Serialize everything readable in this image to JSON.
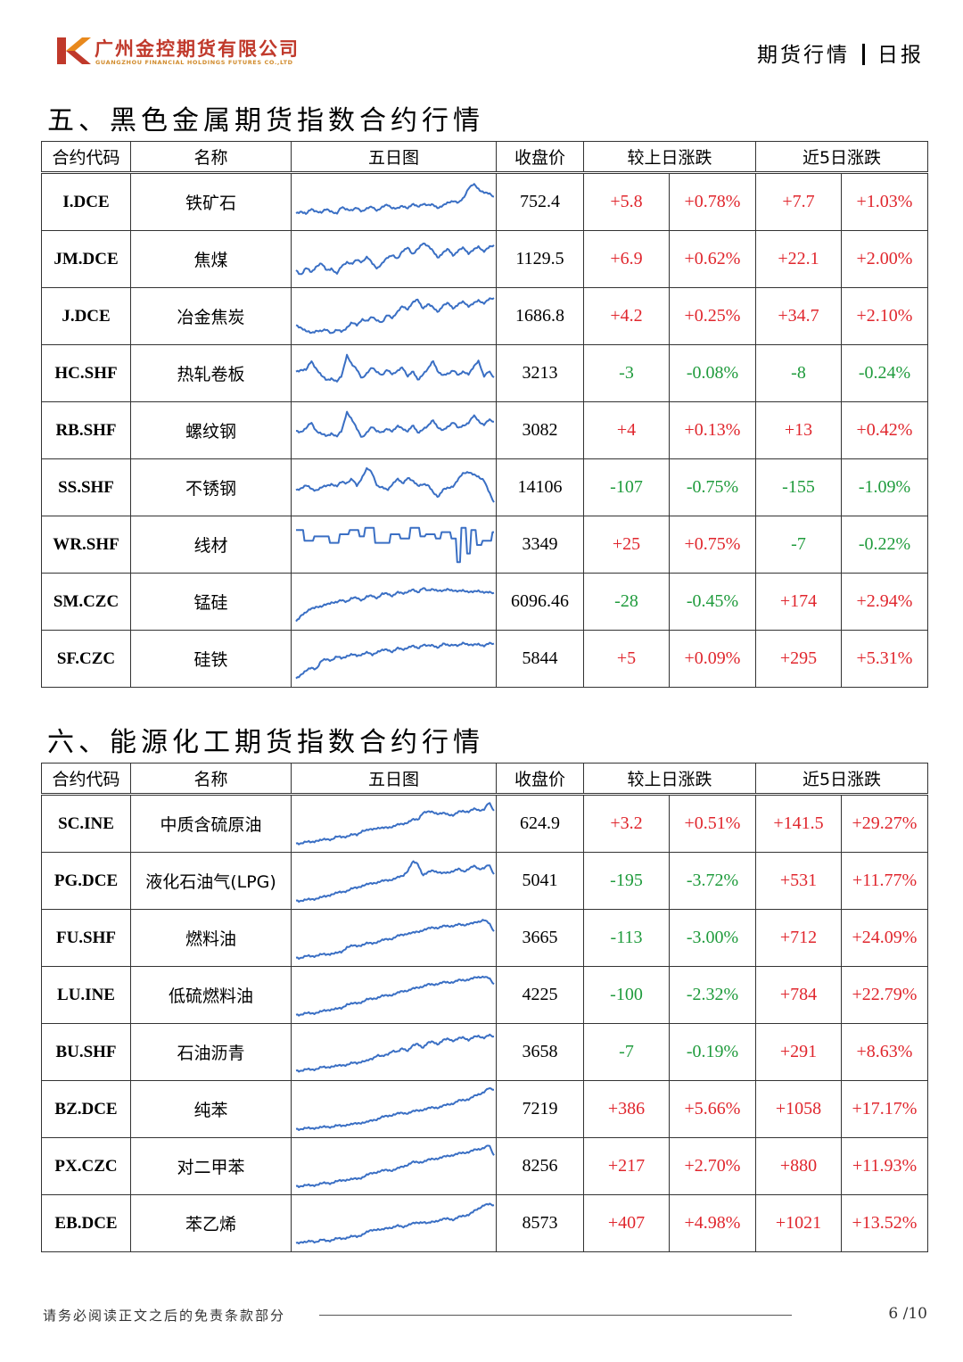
{
  "header": {
    "company_cn": "广州金控期货有限公司",
    "company_en": "GUANGZHOU FINANCIAL HOLDINGS FUTURES CO.,LTD",
    "report_category": "期货行情",
    "report_type": "日报"
  },
  "colors": {
    "up": "#e0262d",
    "down": "#1f9b3c",
    "sparkline": "#3a6fc4",
    "logo_red": "#c0392b",
    "logo_orange": "#e8891d"
  },
  "columns": {
    "code": "合约代码",
    "name": "名称",
    "chart": "五日图",
    "close": "收盘价",
    "day_change": "较上日涨跌",
    "five_day_change": "近5日涨跌"
  },
  "sections": [
    {
      "title": "五、黑色金属期货指数合约行情",
      "rows": [
        {
          "code": "I.DCE",
          "name": "铁矿石",
          "close": "752.4",
          "chg": "+5.8",
          "chg_pct": "+0.78%",
          "chg5": "+7.7",
          "chg5_pct": "+1.03%",
          "dir": "up",
          "dir5": "up",
          "trend": [
            0.25,
            0.3,
            0.22,
            0.35,
            0.3,
            0.25,
            0.35,
            0.3,
            0.22,
            0.4,
            0.35,
            0.3,
            0.38,
            0.3,
            0.35,
            0.4,
            0.32,
            0.38,
            0.45,
            0.38,
            0.35,
            0.42,
            0.38,
            0.45,
            0.4,
            0.48,
            0.42,
            0.45,
            0.38,
            0.42,
            0.5,
            0.55,
            0.48,
            0.6,
            0.85,
            0.92,
            0.8,
            0.75,
            0.7,
            0.62
          ]
        },
        {
          "code": "JM.DCE",
          "name": "焦煤",
          "close": "1129.5",
          "chg": "+6.9",
          "chg_pct": "+0.62%",
          "chg5": "+22.1",
          "chg5_pct": "+2.00%",
          "dir": "up",
          "dir5": "up",
          "trend": [
            0.25,
            0.15,
            0.3,
            0.2,
            0.35,
            0.4,
            0.25,
            0.3,
            0.15,
            0.35,
            0.45,
            0.38,
            0.5,
            0.45,
            0.55,
            0.42,
            0.3,
            0.4,
            0.55,
            0.62,
            0.5,
            0.7,
            0.8,
            0.6,
            0.75,
            0.9,
            0.8,
            0.7,
            0.55,
            0.65,
            0.75,
            0.6,
            0.7,
            0.78,
            0.65,
            0.72,
            0.8,
            0.7,
            0.78,
            0.82
          ]
        },
        {
          "code": "J.DCE",
          "name": "冶金焦炭",
          "close": "1686.8",
          "chg": "+4.2",
          "chg_pct": "+0.25%",
          "chg5": "+34.7",
          "chg5_pct": "+2.10%",
          "dir": "up",
          "dir5": "up",
          "trend": [
            0.3,
            0.25,
            0.15,
            0.12,
            0.18,
            0.15,
            0.2,
            0.12,
            0.18,
            0.15,
            0.25,
            0.35,
            0.3,
            0.45,
            0.38,
            0.5,
            0.42,
            0.35,
            0.55,
            0.48,
            0.6,
            0.75,
            0.68,
            0.82,
            0.9,
            0.7,
            0.78,
            0.72,
            0.62,
            0.75,
            0.82,
            0.7,
            0.78,
            0.85,
            0.75,
            0.8,
            0.88,
            0.82,
            0.9,
            0.92
          ]
        },
        {
          "code": "HC.SHF",
          "name": "热轧卷板",
          "close": "3213",
          "chg": "-3",
          "chg_pct": "-0.08%",
          "chg5": "-8",
          "chg5_pct": "-0.24%",
          "dir": "down",
          "dir5": "down",
          "trend": [
            0.55,
            0.6,
            0.58,
            0.8,
            0.62,
            0.45,
            0.35,
            0.4,
            0.3,
            0.45,
            0.95,
            0.7,
            0.6,
            0.4,
            0.5,
            0.65,
            0.55,
            0.45,
            0.6,
            0.5,
            0.55,
            0.65,
            0.45,
            0.55,
            0.35,
            0.5,
            0.6,
            0.8,
            0.55,
            0.45,
            0.5,
            0.6,
            0.45,
            0.55,
            0.5,
            0.65,
            0.8,
            0.45,
            0.55,
            0.4
          ]
        },
        {
          "code": "RB.SHF",
          "name": "螺纹钢",
          "close": "3082",
          "chg": "+4",
          "chg_pct": "+0.13%",
          "chg5": "+13",
          "chg5_pct": "+0.42%",
          "dir": "up",
          "dir5": "up",
          "trend": [
            0.5,
            0.48,
            0.55,
            0.7,
            0.5,
            0.42,
            0.38,
            0.45,
            0.35,
            0.5,
            0.95,
            0.75,
            0.55,
            0.35,
            0.45,
            0.6,
            0.5,
            0.45,
            0.55,
            0.5,
            0.6,
            0.55,
            0.5,
            0.62,
            0.45,
            0.55,
            0.6,
            0.75,
            0.58,
            0.5,
            0.6,
            0.72,
            0.55,
            0.62,
            0.7,
            0.85,
            0.72,
            0.65,
            0.75,
            0.7
          ]
        },
        {
          "code": "SS.SHF",
          "name": "不锈钢",
          "close": "14106",
          "chg": "-107",
          "chg_pct": "-0.75%",
          "chg5": "-155",
          "chg5_pct": "-1.09%",
          "dir": "down",
          "dir5": "down",
          "trend": [
            0.45,
            0.5,
            0.55,
            0.48,
            0.45,
            0.5,
            0.55,
            0.6,
            0.52,
            0.65,
            0.62,
            0.7,
            0.55,
            0.75,
            0.95,
            0.85,
            0.55,
            0.5,
            0.45,
            0.6,
            0.7,
            0.6,
            0.75,
            0.65,
            0.55,
            0.6,
            0.55,
            0.4,
            0.3,
            0.45,
            0.5,
            0.55,
            0.7,
            0.85,
            0.88,
            0.8,
            0.75,
            0.7,
            0.4,
            0.15
          ]
        },
        {
          "code": "WR.SHF",
          "name": "线材",
          "close": "3349",
          "chg": "+25",
          "chg_pct": "+0.75%",
          "chg5": "-7",
          "chg5_pct": "-0.22%",
          "dir": "up",
          "dir5": "down",
          "trend": [
            0.85,
            0.85,
            0.6,
            0.6,
            0.7,
            0.7,
            0.7,
            0.55,
            0.55,
            0.75,
            0.75,
            0.85,
            0.85,
            0.7,
            0.9,
            0.9,
            0.55,
            0.55,
            0.55,
            0.75,
            0.75,
            0.65,
            0.65,
            0.9,
            0.9,
            0.7,
            0.75,
            0.75,
            0.65,
            0.8,
            0.8,
            0.65,
            0.1,
            0.9,
            0.3,
            0.85,
            0.5,
            0.6,
            0.6,
            0.8
          ]
        },
        {
          "code": "SM.CZC",
          "name": "锰硅",
          "close": "6096.46",
          "chg": "-28",
          "chg_pct": "-0.45%",
          "chg5": "+174",
          "chg5_pct": "+2.94%",
          "dir": "down",
          "dir5": "up",
          "trend": [
            0.05,
            0.2,
            0.25,
            0.35,
            0.4,
            0.38,
            0.45,
            0.5,
            0.48,
            0.55,
            0.52,
            0.58,
            0.6,
            0.55,
            0.62,
            0.65,
            0.6,
            0.68,
            0.7,
            0.65,
            0.72,
            0.7,
            0.75,
            0.78,
            0.72,
            0.85,
            0.75,
            0.8,
            0.78,
            0.75,
            0.8,
            0.78,
            0.74,
            0.77,
            0.75,
            0.73,
            0.76,
            0.74,
            0.72,
            0.7
          ]
        },
        {
          "code": "SF.CZC",
          "name": "硅铁",
          "close": "5844",
          "chg": "+5",
          "chg_pct": "+0.09%",
          "chg5": "+295",
          "chg5_pct": "+5.31%",
          "dir": "up",
          "dir5": "up",
          "trend": [
            0.05,
            0.15,
            0.22,
            0.3,
            0.28,
            0.45,
            0.5,
            0.48,
            0.55,
            0.52,
            0.58,
            0.6,
            0.58,
            0.62,
            0.65,
            0.6,
            0.68,
            0.7,
            0.72,
            0.68,
            0.75,
            0.72,
            0.78,
            0.8,
            0.75,
            0.85,
            0.8,
            0.82,
            0.78,
            0.85,
            0.82,
            0.85,
            0.8,
            0.88,
            0.85,
            0.82,
            0.85,
            0.82,
            0.86,
            0.85
          ]
        }
      ]
    },
    {
      "title": "六、能源化工期货指数合约行情",
      "rows": [
        {
          "code": "SC.INE",
          "name": "中质含硫原油",
          "close": "624.9",
          "chg": "+3.2",
          "chg_pct": "+0.51%",
          "chg5": "+141.5",
          "chg5_pct": "+29.27%",
          "dir": "up",
          "dir5": "up",
          "trend": [
            0.05,
            0.06,
            0.08,
            0.08,
            0.12,
            0.12,
            0.15,
            0.15,
            0.2,
            0.2,
            0.22,
            0.25,
            0.25,
            0.35,
            0.35,
            0.38,
            0.42,
            0.4,
            0.42,
            0.45,
            0.48,
            0.5,
            0.55,
            0.6,
            0.6,
            0.78,
            0.78,
            0.78,
            0.75,
            0.75,
            0.72,
            0.72,
            0.78,
            0.8,
            0.8,
            0.85,
            0.82,
            0.85,
            1.0,
            0.8
          ]
        },
        {
          "code": "PG.DCE",
          "name": "液化石油气(LPG)",
          "close": "5041",
          "chg": "-195",
          "chg_pct": "-3.72%",
          "chg5": "+531",
          "chg5_pct": "+11.77%",
          "dir": "down",
          "dir5": "up",
          "trend": [
            0.05,
            0.05,
            0.06,
            0.08,
            0.1,
            0.12,
            0.15,
            0.2,
            0.22,
            0.25,
            0.28,
            0.32,
            0.35,
            0.4,
            0.42,
            0.45,
            0.48,
            0.5,
            0.52,
            0.55,
            0.58,
            0.62,
            0.75,
            0.95,
            0.9,
            0.65,
            0.7,
            0.75,
            0.72,
            0.68,
            0.7,
            0.75,
            0.78,
            0.72,
            0.8,
            0.85,
            0.78,
            0.82,
            0.88,
            0.65
          ]
        },
        {
          "code": "FU.SHF",
          "name": "燃料油",
          "close": "3665",
          "chg": "-113",
          "chg_pct": "-3.00%",
          "chg5": "+712",
          "chg5_pct": "+24.09%",
          "dir": "down",
          "dir5": "up",
          "trend": [
            0.05,
            0.05,
            0.08,
            0.08,
            0.1,
            0.12,
            0.12,
            0.15,
            0.15,
            0.18,
            0.3,
            0.32,
            0.32,
            0.35,
            0.38,
            0.38,
            0.42,
            0.45,
            0.48,
            0.5,
            0.55,
            0.58,
            0.62,
            0.62,
            0.65,
            0.7,
            0.72,
            0.75,
            0.75,
            0.78,
            0.78,
            0.8,
            0.82,
            0.8,
            0.85,
            0.85,
            0.88,
            0.95,
            0.85,
            0.65
          ]
        },
        {
          "code": "LU.INE",
          "name": "低硫燃料油",
          "close": "4225",
          "chg": "-100",
          "chg_pct": "-2.32%",
          "chg5": "+784",
          "chg5_pct": "+22.79%",
          "dir": "down",
          "dir5": "up",
          "trend": [
            0.05,
            0.06,
            0.08,
            0.08,
            0.1,
            0.12,
            0.15,
            0.18,
            0.18,
            0.2,
            0.3,
            0.3,
            0.32,
            0.35,
            0.4,
            0.42,
            0.45,
            0.48,
            0.5,
            0.52,
            0.55,
            0.6,
            0.62,
            0.65,
            0.68,
            0.72,
            0.75,
            0.75,
            0.78,
            0.8,
            0.8,
            0.82,
            0.85,
            0.85,
            0.88,
            0.9,
            0.92,
            0.95,
            0.9,
            0.75
          ]
        },
        {
          "code": "BU.SHF",
          "name": "石油沥青",
          "close": "3658",
          "chg": "-7",
          "chg_pct": "-0.19%",
          "chg5": "+291",
          "chg5_pct": "+8.63%",
          "dir": "down",
          "dir5": "up",
          "trend": [
            0.08,
            0.08,
            0.1,
            0.1,
            0.12,
            0.15,
            0.15,
            0.18,
            0.18,
            0.2,
            0.22,
            0.25,
            0.25,
            0.3,
            0.3,
            0.35,
            0.45,
            0.4,
            0.45,
            0.55,
            0.5,
            0.6,
            0.55,
            0.65,
            0.7,
            0.62,
            0.72,
            0.75,
            0.7,
            0.78,
            0.82,
            0.78,
            0.82,
            0.85,
            0.8,
            0.85,
            0.88,
            0.85,
            0.9,
            0.86
          ]
        },
        {
          "code": "BZ.DCE",
          "name": "纯苯",
          "close": "7219",
          "chg": "+386",
          "chg_pct": "+5.66%",
          "chg5": "+1058",
          "chg5_pct": "+17.17%",
          "dir": "up",
          "dir5": "up",
          "trend": [
            0.05,
            0.05,
            0.06,
            0.06,
            0.08,
            0.08,
            0.1,
            0.1,
            0.12,
            0.12,
            0.15,
            0.15,
            0.18,
            0.2,
            0.2,
            0.25,
            0.28,
            0.32,
            0.35,
            0.38,
            0.4,
            0.42,
            0.42,
            0.45,
            0.48,
            0.5,
            0.52,
            0.55,
            0.55,
            0.58,
            0.62,
            0.65,
            0.7,
            0.72,
            0.75,
            0.8,
            0.85,
            0.92,
            1.0,
            0.95
          ]
        },
        {
          "code": "PX.CZC",
          "name": "对二甲苯",
          "close": "8256",
          "chg": "+217",
          "chg_pct": "+2.70%",
          "chg5": "+880",
          "chg5_pct": "+11.93%",
          "dir": "up",
          "dir5": "up",
          "trend": [
            0.05,
            0.05,
            0.06,
            0.06,
            0.08,
            0.1,
            0.12,
            0.12,
            0.15,
            0.18,
            0.2,
            0.2,
            0.22,
            0.25,
            0.3,
            0.35,
            0.38,
            0.4,
            0.42,
            0.42,
            0.45,
            0.5,
            0.55,
            0.6,
            0.6,
            0.62,
            0.65,
            0.68,
            0.7,
            0.72,
            0.75,
            0.78,
            0.8,
            0.82,
            0.85,
            0.88,
            0.9,
            0.95,
            1.0,
            0.75
          ]
        },
        {
          "code": "EB.DCE",
          "name": "苯乙烯",
          "close": "8573",
          "chg": "+407",
          "chg_pct": "+4.98%",
          "chg5": "+1021",
          "chg5_pct": "+13.52%",
          "dir": "up",
          "dir5": "up",
          "trend": [
            0.05,
            0.08,
            0.06,
            0.1,
            0.08,
            0.12,
            0.1,
            0.12,
            0.15,
            0.15,
            0.18,
            0.2,
            0.2,
            0.25,
            0.3,
            0.35,
            0.38,
            0.35,
            0.4,
            0.42,
            0.45,
            0.42,
            0.48,
            0.5,
            0.52,
            0.55,
            0.5,
            0.55,
            0.58,
            0.6,
            0.62,
            0.6,
            0.65,
            0.68,
            0.72,
            0.78,
            0.85,
            0.95,
            0.95,
            0.92
          ]
        }
      ]
    }
  ],
  "footer": {
    "disclaimer": "请务必阅读正文之后的免责条款部分",
    "page": "6 /10"
  }
}
